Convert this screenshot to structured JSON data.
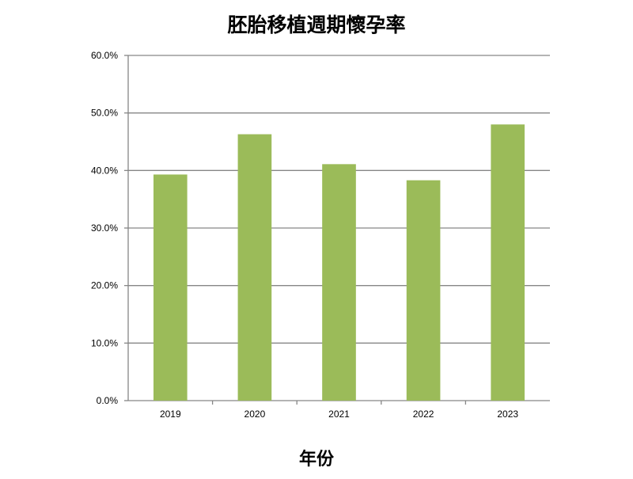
{
  "chart_data": {
    "type": "bar",
    "title": "胚胎移植週期懷孕率",
    "xlabel": "年份",
    "ylabel": "",
    "categories": [
      "2019",
      "2020",
      "2021",
      "2022",
      "2023"
    ],
    "values": [
      0.393,
      0.463,
      0.411,
      0.383,
      0.48
    ],
    "ylim": [
      0,
      0.6
    ],
    "yticks": [
      0,
      0.1,
      0.2,
      0.3,
      0.4,
      0.5,
      0.6
    ],
    "ytick_labels": [
      "0.0%",
      "10.0%",
      "20.0%",
      "30.0%",
      "40.0%",
      "50.0%",
      "60.0%"
    ],
    "grid": true,
    "legend": "none",
    "bar_color": "#9bbb59",
    "grid_color": "#868686"
  }
}
